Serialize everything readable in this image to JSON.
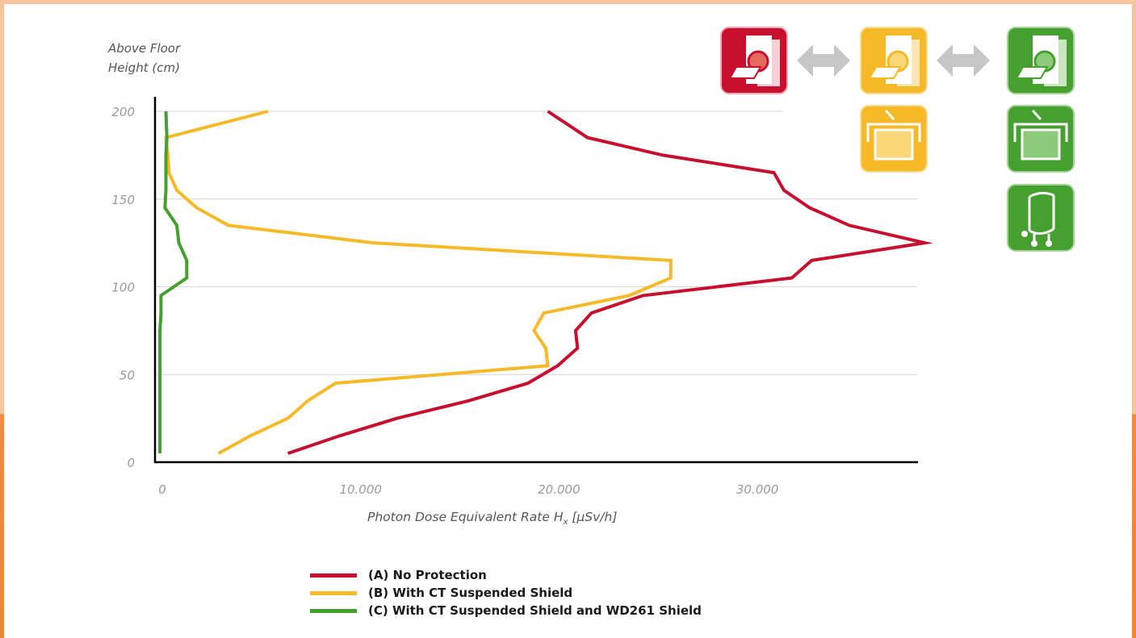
{
  "colors": {
    "red": "#c8102e",
    "yellow": "#f6b928",
    "green": "#45a02f",
    "frame": "#f6c59c",
    "frame_accent": "#f58a3b",
    "arrow": "#c6c6c6"
  },
  "icons": [
    {
      "name": "ct-scanner-red-icon"
    },
    {
      "name": "double-arrow-icon"
    },
    {
      "name": "ct-scanner-yellow-icon"
    },
    {
      "name": "double-arrow-icon"
    },
    {
      "name": "ct-scanner-green-icon"
    },
    {
      "name": "suspended-shield-yellow-icon"
    },
    {
      "name": "suspended-shield-green-icon"
    },
    {
      "name": "mobile-shield-green-icon"
    }
  ],
  "chart_data": {
    "type": "line",
    "title": "",
    "ylabel_line1": "Above Floor",
    "ylabel_line2": "Height (cm)",
    "xlabel_main": "Photon Dose Equivalent Rate H",
    "xlabel_sub": "x",
    "xlabel_unit": " [µSv/h]",
    "xlim": [
      0,
      40000
    ],
    "ylim": [
      0,
      200
    ],
    "x_ticks": [
      {
        "value": 0,
        "label": "0"
      },
      {
        "value": 10000,
        "label": "10.000"
      },
      {
        "value": 20000,
        "label": "20.000"
      },
      {
        "value": 30000,
        "label": "30.000"
      }
    ],
    "y_ticks": [
      {
        "value": 0,
        "label": "0"
      },
      {
        "value": 50,
        "label": "50"
      },
      {
        "value": 100,
        "label": "100"
      },
      {
        "value": 150,
        "label": "150"
      },
      {
        "value": 200,
        "label": "200"
      }
    ],
    "grid": "horizontal",
    "legend_position": "bottom",
    "series": [
      {
        "name": "(A) No Protection",
        "color": "#c8102e",
        "points": [
          [
            6700,
            5
          ],
          [
            9300,
            15
          ],
          [
            12200,
            25
          ],
          [
            15800,
            35
          ],
          [
            18800,
            45
          ],
          [
            20300,
            55
          ],
          [
            21300,
            65
          ],
          [
            21200,
            75
          ],
          [
            22000,
            85
          ],
          [
            24600,
            95
          ],
          [
            32100,
            105
          ],
          [
            33100,
            115
          ],
          [
            38800,
            125
          ],
          [
            35000,
            135
          ],
          [
            33000,
            145
          ],
          [
            31700,
            155
          ],
          [
            31200,
            165
          ],
          [
            25600,
            175
          ],
          [
            21800,
            185
          ],
          [
            19800,
            200
          ]
        ]
      },
      {
        "name": "(B) With CT Suspended Shield",
        "color": "#f6b928",
        "points": [
          [
            3200,
            5
          ],
          [
            4800,
            15
          ],
          [
            6700,
            25
          ],
          [
            7700,
            35
          ],
          [
            9100,
            45
          ],
          [
            19800,
            55
          ],
          [
            19700,
            65
          ],
          [
            19100,
            75
          ],
          [
            19600,
            85
          ],
          [
            23900,
            95
          ],
          [
            26000,
            105
          ],
          [
            26000,
            115
          ],
          [
            11000,
            125
          ],
          [
            3700,
            135
          ],
          [
            2100,
            145
          ],
          [
            1100,
            155
          ],
          [
            700,
            165
          ],
          [
            650,
            175
          ],
          [
            550,
            185
          ],
          [
            5700,
            200
          ]
        ]
      },
      {
        "name": "(C) With CT Suspended Shield and WD261 Shield",
        "color": "#45a02f",
        "points": [
          [
            250,
            5
          ],
          [
            250,
            15
          ],
          [
            250,
            25
          ],
          [
            250,
            35
          ],
          [
            250,
            45
          ],
          [
            250,
            55
          ],
          [
            250,
            65
          ],
          [
            250,
            75
          ],
          [
            300,
            85
          ],
          [
            300,
            95
          ],
          [
            1600,
            105
          ],
          [
            1600,
            115
          ],
          [
            1200,
            125
          ],
          [
            1100,
            135
          ],
          [
            500,
            145
          ],
          [
            550,
            155
          ],
          [
            550,
            165
          ],
          [
            550,
            175
          ],
          [
            600,
            185
          ],
          [
            550,
            200
          ]
        ]
      }
    ]
  }
}
